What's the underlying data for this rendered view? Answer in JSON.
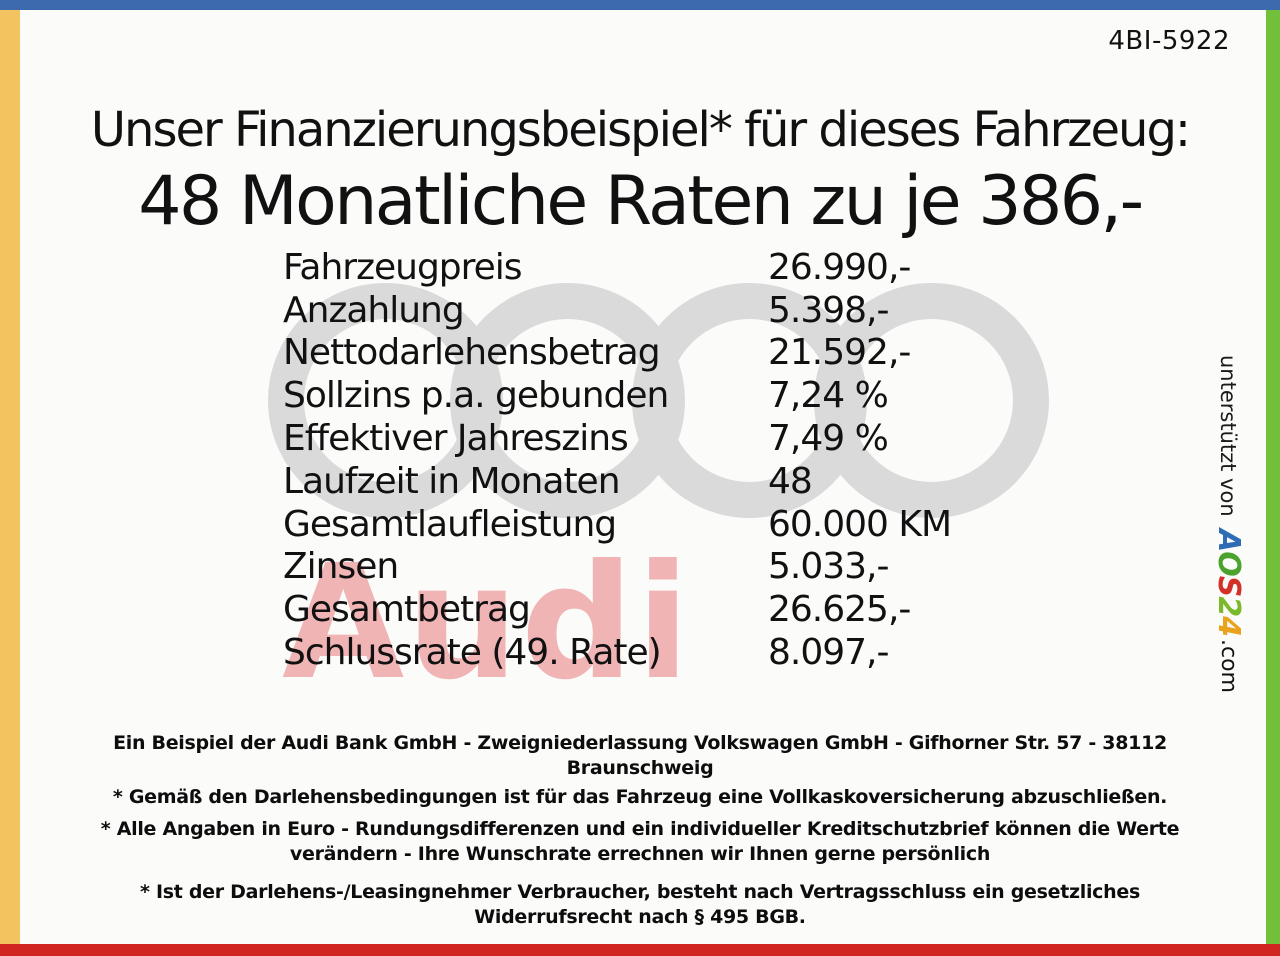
{
  "page": {
    "ref_code": "4BI-5922",
    "title_line1": "Unser Finanzierungsbeispiel* für dieses Fahrzeug:",
    "title_line2": "48 Monatliche Raten zu je 386,-"
  },
  "finance_table": {
    "rows": [
      {
        "label": "Fahrzeugpreis",
        "value": "26.990,-"
      },
      {
        "label": "Anzahlung",
        "value": "5.398,-"
      },
      {
        "label": "Nettodarlehensbetrag",
        "value": "21.592,-"
      },
      {
        "label": "Sollzins p.a. gebunden",
        "value": "7,24 %"
      },
      {
        "label": "Effektiver Jahreszins",
        "value": "7,49 %"
      },
      {
        "label": "Laufzeit in Monaten",
        "value": "48"
      },
      {
        "label": "Gesamtlaufleistung",
        "value": "60.000 KM"
      },
      {
        "label": "Zinsen",
        "value": "5.033,-"
      },
      {
        "label": "Gesamtbetrag",
        "value": "26.625,-"
      },
      {
        "label": "Schlussrate (49. Rate)",
        "value": "8.097,-"
      }
    ]
  },
  "watermark": {
    "brand_text": "Audi",
    "rings_icon": "audi-rings-icon",
    "rings_color": "#dadada",
    "brand_color": "#f0b4b4"
  },
  "sidebar": {
    "supported_by": "unterstützt von",
    "logo_letters": [
      {
        "char": "A",
        "color": "#2e6db6"
      },
      {
        "char": "O",
        "color": "#4ba32d"
      },
      {
        "char": "S",
        "color": "#d33128"
      },
      {
        "char": "2",
        "color": "#7ab929"
      },
      {
        "char": "4",
        "color": "#e9a21b"
      }
    ],
    "logo_suffix": ".com"
  },
  "footer": {
    "lines": [
      "Ein Beispiel der Audi Bank GmbH - Zweigniederlassung Volkswagen GmbH - Gifhorner Str. 57 - 38112",
      "Braunschweig",
      "* Gemäß den Darlehensbedingungen ist für das Fahrzeug eine Vollkaskoversicherung abzuschließen.",
      "* Alle Angaben in Euro - Rundungsdifferenzen und ein individueller Kreditschutzbrief können die Werte",
      "verändern - Ihre Wunschrate errechnen wir Ihnen gerne persönlich",
      "* Ist der Darlehens-/Leasingnehmer Verbraucher, besteht nach Vertragsschluss ein gesetzliches",
      "Widerrufsrecht nach § 495 BGB."
    ]
  },
  "colors": {
    "top_bar": "#3d69ae",
    "left_stripe": "#f2c35e",
    "right_stripe": "#72bf3a",
    "bottom_bar": "#d0261f"
  }
}
